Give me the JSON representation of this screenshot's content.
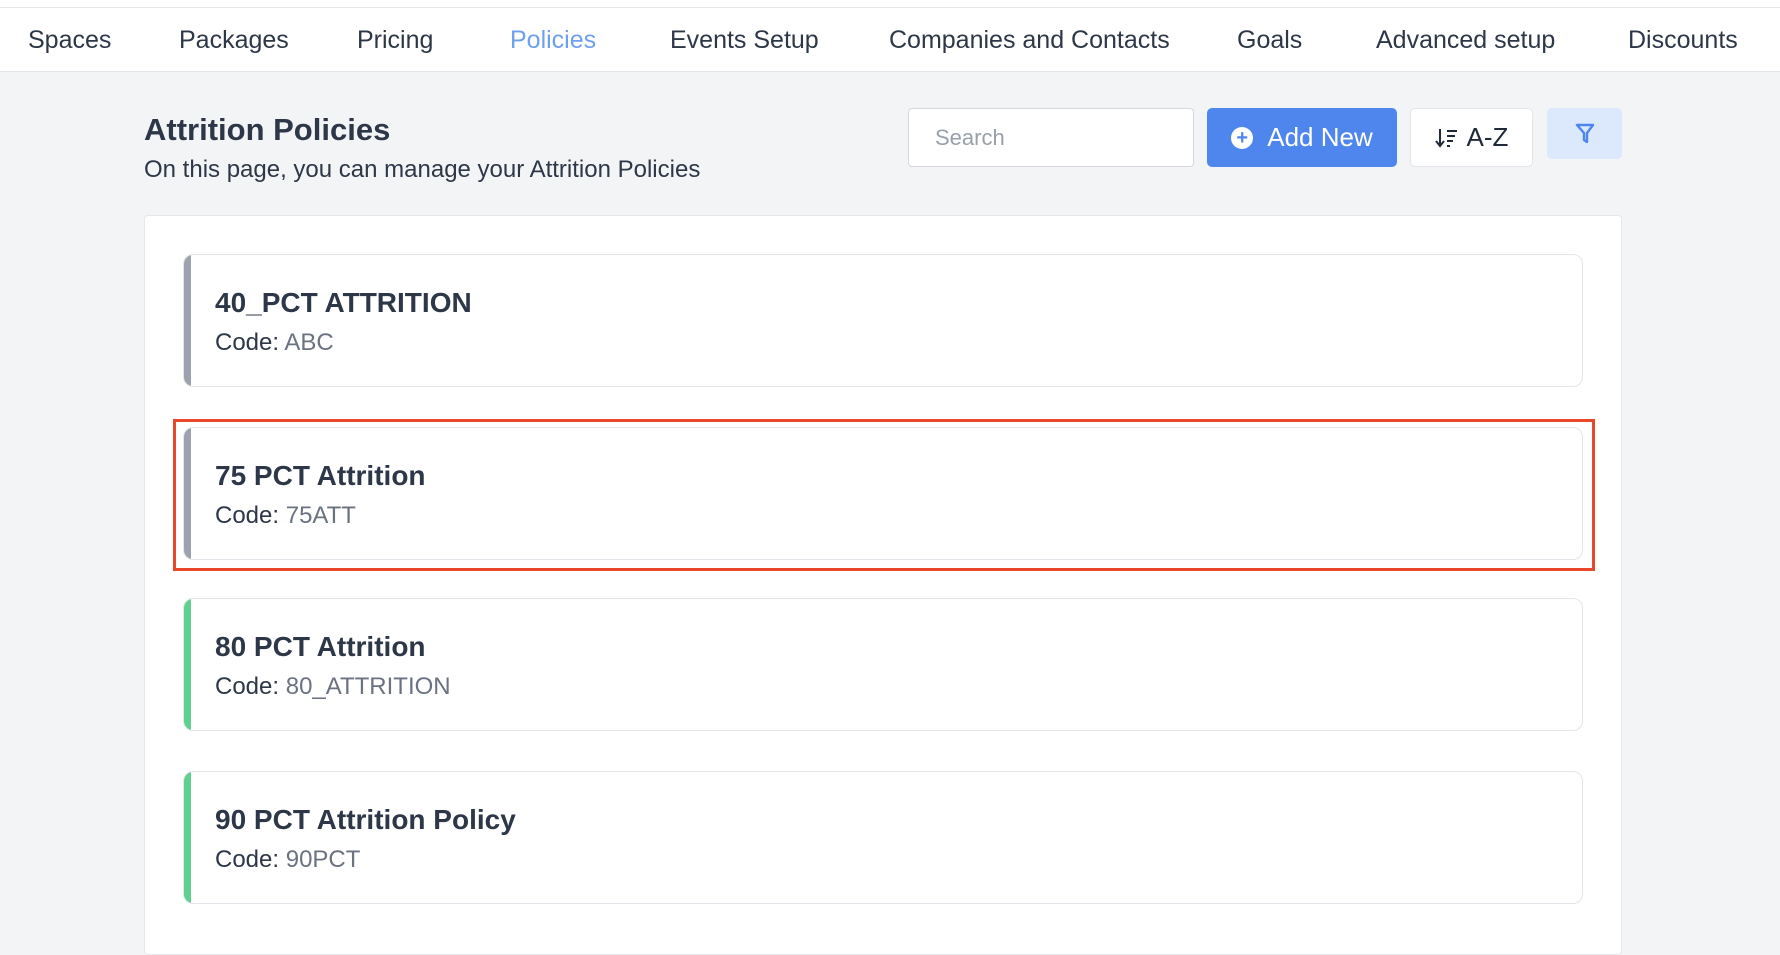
{
  "nav": {
    "items": [
      {
        "label": "Spaces",
        "active": false
      },
      {
        "label": "Packages",
        "active": false
      },
      {
        "label": "Pricing",
        "active": false
      },
      {
        "label": "Policies",
        "active": true
      },
      {
        "label": "Events Setup",
        "active": false
      },
      {
        "label": "Companies and Contacts",
        "active": false
      },
      {
        "label": "Goals",
        "active": false
      },
      {
        "label": "Advanced setup",
        "active": false
      },
      {
        "label": "Discounts",
        "active": false
      }
    ]
  },
  "header": {
    "title": "Attrition Policies",
    "subtitle": "On this page, you can manage your Attrition Policies"
  },
  "toolbar": {
    "search_placeholder": "Search",
    "search_value": "",
    "add_label": "Add New",
    "add_icon": "plus-circle-icon",
    "sort_label": "A-Z",
    "sort_icon": "sort-descending-icon",
    "filter_icon": "funnel-icon"
  },
  "colors": {
    "accent": "#4f86ee",
    "active_nav": "#6ea0ee",
    "inactive_bar": "#9ca3af",
    "active_bar": "#5fd08e",
    "highlight": "#e8472a"
  },
  "policies": [
    {
      "name": "40_PCT ATTRITION",
      "code_label": "Code:",
      "code": "ABC",
      "status_color": "#9ca3af"
    },
    {
      "name": "75 PCT Attrition",
      "code_label": "Code:",
      "code": "75ATT",
      "status_color": "#9ca3af",
      "highlighted": true
    },
    {
      "name": "80 PCT Attrition",
      "code_label": "Code:",
      "code": "80_ATTRITION",
      "status_color": "#5fd08e"
    },
    {
      "name": "90 PCT Attrition Policy",
      "code_label": "Code:",
      "code": "90PCT",
      "status_color": "#5fd08e"
    }
  ]
}
